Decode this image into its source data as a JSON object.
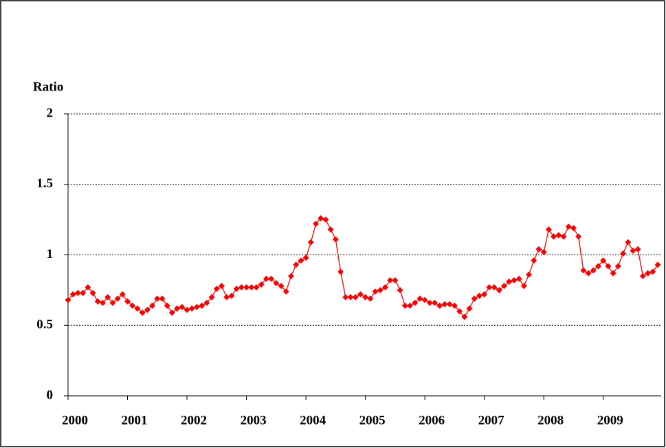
{
  "chart_data": {
    "type": "line",
    "y_label": "Ratio",
    "categories": [
      "2000",
      null,
      null,
      null,
      null,
      null,
      null,
      null,
      null,
      null,
      null,
      null,
      "2001",
      null,
      null,
      null,
      null,
      null,
      null,
      null,
      null,
      null,
      null,
      null,
      "2002",
      null,
      null,
      null,
      null,
      null,
      null,
      null,
      null,
      null,
      null,
      null,
      "2003",
      null,
      null,
      null,
      null,
      null,
      null,
      null,
      null,
      null,
      null,
      null,
      "2004",
      null,
      null,
      null,
      null,
      null,
      null,
      null,
      null,
      null,
      null,
      null,
      "2005",
      null,
      null,
      null,
      null,
      null,
      null,
      null,
      null,
      null,
      null,
      null,
      "2006",
      null,
      null,
      null,
      null,
      null,
      null,
      null,
      null,
      null,
      null,
      null,
      "2007",
      null,
      null,
      null,
      null,
      null,
      null,
      null,
      null,
      null,
      null,
      null,
      "2008",
      null,
      null,
      null,
      null,
      null,
      null,
      null,
      null,
      null,
      null,
      null,
      "2009",
      null,
      null,
      null,
      null,
      null,
      null,
      null,
      null,
      null,
      null,
      null
    ],
    "values": [
      0.68,
      0.72,
      0.73,
      0.73,
      0.77,
      0.73,
      0.67,
      0.66,
      0.7,
      0.66,
      0.69,
      0.72,
      0.67,
      0.64,
      0.62,
      0.59,
      0.61,
      0.64,
      0.69,
      0.69,
      0.64,
      0.59,
      0.62,
      0.63,
      0.61,
      0.62,
      0.63,
      0.64,
      0.66,
      0.7,
      0.76,
      0.78,
      0.7,
      0.71,
      0.76,
      0.77,
      0.77,
      0.77,
      0.77,
      0.79,
      0.83,
      0.83,
      0.8,
      0.78,
      0.74,
      0.85,
      0.93,
      0.96,
      0.98,
      1.09,
      1.22,
      1.26,
      1.25,
      1.18,
      1.11,
      0.88,
      0.7,
      0.7,
      0.7,
      0.72,
      0.7,
      0.69,
      0.74,
      0.75,
      0.77,
      0.82,
      0.82,
      0.75,
      0.64,
      0.64,
      0.66,
      0.69,
      0.68,
      0.66,
      0.66,
      0.64,
      0.65,
      0.65,
      0.64,
      0.6,
      0.56,
      0.62,
      0.69,
      0.71,
      0.72,
      0.77,
      0.77,
      0.75,
      0.78,
      0.81,
      0.82,
      0.83,
      0.78,
      0.86,
      0.96,
      1.04,
      1.02,
      1.18,
      1.13,
      1.14,
      1.13,
      1.2,
      1.19,
      1.13,
      0.89,
      0.87,
      0.89,
      0.92,
      0.96,
      0.92,
      0.87,
      0.92,
      1.01,
      1.09,
      1.03,
      1.04,
      0.85,
      0.87,
      0.88,
      0.93
    ],
    "color": "#ff0000",
    "ylim": [
      0,
      2
    ],
    "yticks": [
      0,
      0.5,
      1,
      1.5,
      2
    ],
    "grid": true
  }
}
